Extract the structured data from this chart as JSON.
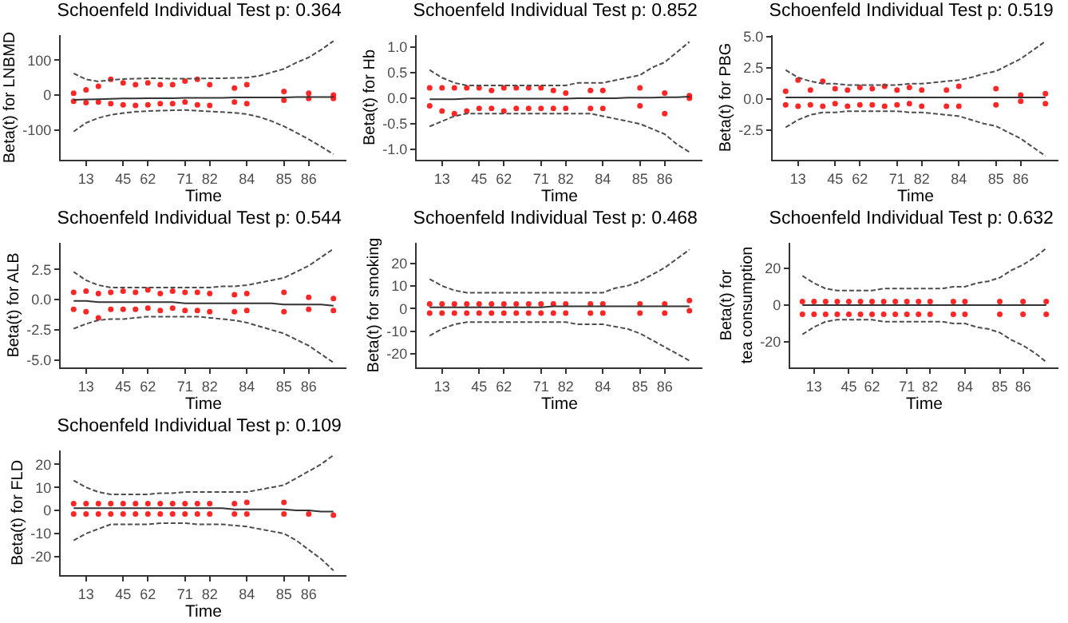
{
  "chart_data": [
    {
      "type": "scatter",
      "title": "Schoenfeld Individual Test p: 0.364",
      "xlabel": "Time",
      "ylabel": "Beta(t) for LNBMD",
      "categories": [
        null,
        "13",
        null,
        null,
        "45",
        null,
        "62",
        null,
        null,
        "71",
        null,
        "82",
        null,
        null,
        "84",
        null,
        null,
        "85",
        null,
        "86",
        null,
        null
      ],
      "ylim": [
        -186,
        172
      ],
      "yticks": [
        -100,
        0,
        100
      ],
      "series": [
        {
          "type": "scatter",
          "marker": "circle",
          "color": "#ff0000",
          "values": [
            5,
            15,
            25,
            45,
            35,
            30,
            35,
            30,
            30,
            40,
            45,
            30,
            null,
            20,
            30,
            null,
            null,
            10,
            null,
            5,
            null,
            0
          ]
        },
        {
          "type": "scatter",
          "marker": "circle",
          "color": "#ff0000",
          "values": [
            -18,
            -22,
            -20,
            -25,
            -28,
            -30,
            -28,
            -25,
            -25,
            -20,
            -28,
            -30,
            null,
            -20,
            -25,
            null,
            null,
            -15,
            null,
            -10,
            null,
            -10
          ]
        },
        {
          "type": "line",
          "marker": "none",
          "color": "#333333",
          "line_style": "solid",
          "values": [
            -14,
            -13,
            -12,
            -11,
            -10,
            -10,
            -9,
            -9,
            -9,
            -8,
            -8,
            -8,
            -8,
            -7,
            -7,
            -7,
            -7,
            -7,
            -6,
            -6,
            -6,
            -6
          ]
        },
        {
          "type": "line",
          "marker": "none",
          "color": "#4d4d4d",
          "line_style": "dashed",
          "values": [
            62,
            45,
            39,
            43,
            46,
            47,
            48,
            48,
            47,
            47,
            47,
            48,
            48,
            49,
            50,
            55,
            65,
            75,
            93,
            108,
            130,
            155
          ]
        },
        {
          "type": "line",
          "marker": "none",
          "color": "#4d4d4d",
          "line_style": "dashed",
          "values": [
            -105,
            -80,
            -66,
            -57,
            -52,
            -48,
            -46,
            -45,
            -44,
            -43,
            -45,
            -47,
            -49,
            -51,
            -55,
            -63,
            -75,
            -90,
            -108,
            -127,
            -148,
            -170
          ]
        }
      ]
    },
    {
      "type": "scatter",
      "title": "Schoenfeld Individual Test p: 0.852",
      "xlabel": "Time",
      "ylabel": "Beta(t) for Hb",
      "categories": [
        null,
        "13",
        null,
        null,
        "45",
        null,
        "62",
        null,
        null,
        "71",
        null,
        "82",
        null,
        null,
        "84",
        null,
        null,
        "85",
        null,
        "86",
        null,
        null
      ],
      "ylim": [
        -1.2,
        1.23
      ],
      "yticks": [
        {
          "value": -1,
          "label": "-1.0"
        },
        {
          "value": -0.5,
          "label": "-0.5"
        },
        {
          "value": 0,
          "label": "0.0"
        },
        {
          "value": 0.5,
          "label": "0.5"
        },
        {
          "value": 1,
          "label": "1.0"
        }
      ],
      "series": [
        {
          "type": "scatter",
          "marker": "circle",
          "color": "#ff0000",
          "values": [
            0.2,
            0.2,
            0.2,
            0.2,
            0.2,
            0.15,
            0.2,
            0.2,
            0.2,
            0.2,
            0.15,
            0.1,
            null,
            0.15,
            0.15,
            null,
            null,
            0.2,
            null,
            0.1,
            null,
            0.05
          ]
        },
        {
          "type": "scatter",
          "marker": "circle",
          "color": "#ff0000",
          "values": [
            -0.15,
            -0.25,
            -0.3,
            -0.25,
            -0.2,
            -0.2,
            -0.25,
            -0.2,
            -0.2,
            -0.2,
            -0.2,
            -0.2,
            null,
            -0.2,
            -0.2,
            null,
            null,
            -0.15,
            null,
            -0.3,
            null,
            0
          ]
        },
        {
          "type": "line",
          "marker": "none",
          "color": "#333333",
          "line_style": "solid",
          "values": [
            -0.02,
            -0.02,
            -0.02,
            -0.01,
            -0.01,
            -0.01,
            -0.01,
            -0.01,
            -0.01,
            -0.01,
            -0.01,
            -0.01,
            0,
            0,
            0,
            0,
            0.01,
            0.01,
            0.01,
            0.02,
            0.02,
            0.03
          ]
        },
        {
          "type": "line",
          "marker": "none",
          "color": "#4d4d4d",
          "line_style": "dashed",
          "values": [
            0.55,
            0.4,
            0.3,
            0.25,
            0.25,
            0.25,
            0.25,
            0.25,
            0.25,
            0.25,
            0.25,
            0.25,
            0.3,
            0.3,
            0.3,
            0.35,
            0.4,
            0.45,
            0.6,
            0.7,
            0.9,
            1.1
          ]
        },
        {
          "type": "line",
          "marker": "none",
          "color": "#4d4d4d",
          "line_style": "dashed",
          "values": [
            -0.55,
            -0.45,
            -0.35,
            -0.3,
            -0.3,
            -0.3,
            -0.3,
            -0.3,
            -0.3,
            -0.3,
            -0.3,
            -0.3,
            -0.3,
            -0.3,
            -0.35,
            -0.4,
            -0.45,
            -0.5,
            -0.6,
            -0.7,
            -0.9,
            -1.05
          ]
        }
      ]
    },
    {
      "type": "scatter",
      "title": "Schoenfeld Individual Test p: 0.519",
      "xlabel": "Time",
      "ylabel": "Beta(t) for PBG",
      "categories": [
        null,
        "13",
        null,
        null,
        "45",
        null,
        "62",
        null,
        null,
        "71",
        null,
        "82",
        null,
        null,
        "84",
        null,
        null,
        "85",
        null,
        "86",
        null,
        null
      ],
      "ylim": [
        -4.9,
        5.1
      ],
      "yticks": [
        {
          "value": -2.5,
          "label": "-2.5"
        },
        {
          "value": 0,
          "label": "0.0"
        },
        {
          "value": 2.5,
          "label": "2.5"
        },
        {
          "value": 5,
          "label": "5.0"
        }
      ],
      "series": [
        {
          "type": "scatter",
          "marker": "circle",
          "color": "#ff0000",
          "values": [
            0.6,
            1.5,
            0.7,
            1.4,
            0.8,
            0.7,
            0.9,
            0.8,
            1.0,
            0.7,
            0.9,
            0.7,
            null,
            0.7,
            1.0,
            null,
            null,
            0.8,
            null,
            0.3,
            null,
            0.4
          ]
        },
        {
          "type": "scatter",
          "marker": "circle",
          "color": "#ff0000",
          "values": [
            -0.5,
            -0.6,
            -0.5,
            -0.6,
            -0.4,
            -0.6,
            -0.5,
            -0.5,
            -0.6,
            -0.5,
            -0.4,
            -0.6,
            null,
            -0.6,
            -0.6,
            null,
            null,
            -0.5,
            null,
            -0.2,
            null,
            -0.4
          ]
        },
        {
          "type": "line",
          "marker": "none",
          "color": "#333333",
          "line_style": "solid",
          "values": [
            0.1,
            0.1,
            0.1,
            0.1,
            0.1,
            0.1,
            0.1,
            0.1,
            0.1,
            0.1,
            0.1,
            0.1,
            0.1,
            0.1,
            0.1,
            0.1,
            0.1,
            0.1,
            0.1,
            0.1,
            0.1,
            0.1
          ]
        },
        {
          "type": "line",
          "marker": "none",
          "color": "#4d4d4d",
          "line_style": "dashed",
          "values": [
            2.3,
            1.7,
            1.4,
            1.2,
            1.2,
            1.1,
            1.1,
            1.1,
            1.1,
            1.1,
            1.2,
            1.2,
            1.3,
            1.4,
            1.5,
            1.7,
            2.0,
            2.2,
            2.7,
            3.2,
            3.9,
            4.6
          ]
        },
        {
          "type": "line",
          "marker": "none",
          "color": "#4d4d4d",
          "line_style": "dashed",
          "values": [
            -2.3,
            -1.7,
            -1.3,
            -1.1,
            -1.1,
            -1.0,
            -1.0,
            -1.0,
            -1.0,
            -1.0,
            -1.1,
            -1.1,
            -1.2,
            -1.3,
            -1.4,
            -1.7,
            -2.0,
            -2.2,
            -2.7,
            -3.2,
            -3.9,
            -4.6
          ]
        }
      ]
    },
    {
      "type": "scatter",
      "title": "Schoenfeld Individual Test p: 0.544",
      "xlabel": "Time",
      "ylabel": "Beta(t) for ALB",
      "categories": [
        null,
        "13",
        null,
        null,
        "45",
        null,
        "62",
        null,
        null,
        "71",
        null,
        "82",
        null,
        null,
        "84",
        null,
        null,
        "85",
        null,
        "86",
        null,
        null
      ],
      "ylim": [
        -5.6,
        4.7
      ],
      "yticks": [
        {
          "value": -5,
          "label": "-5.0"
        },
        {
          "value": -2.5,
          "label": "-2.5"
        },
        {
          "value": 0,
          "label": "0.0"
        },
        {
          "value": 2.5,
          "label": "2.5"
        }
      ],
      "series": [
        {
          "type": "scatter",
          "marker": "circle",
          "color": "#ff0000",
          "values": [
            0.6,
            0.7,
            0.5,
            0.6,
            0.7,
            0.6,
            0.8,
            0.5,
            0.7,
            0.6,
            0.6,
            0.5,
            null,
            0.4,
            0.5,
            null,
            null,
            0.6,
            null,
            0.2,
            null,
            0.1
          ]
        },
        {
          "type": "scatter",
          "marker": "circle",
          "color": "#ff0000",
          "values": [
            -0.8,
            -1.0,
            -1.5,
            -0.8,
            -0.8,
            -0.8,
            -0.7,
            -0.9,
            -0.7,
            -0.9,
            -0.9,
            -1.0,
            null,
            -1.0,
            -0.9,
            null,
            null,
            -1.0,
            null,
            -0.8,
            null,
            -0.9
          ]
        },
        {
          "type": "line",
          "marker": "none",
          "color": "#333333",
          "line_style": "solid",
          "values": [
            -0.1,
            -0.1,
            -0.2,
            -0.2,
            -0.2,
            -0.2,
            -0.2,
            -0.2,
            -0.2,
            -0.3,
            -0.3,
            -0.3,
            -0.3,
            -0.3,
            -0.3,
            -0.3,
            -0.3,
            -0.4,
            -0.4,
            -0.4,
            -0.4,
            -0.5
          ]
        },
        {
          "type": "line",
          "marker": "none",
          "color": "#4d4d4d",
          "line_style": "dashed",
          "values": [
            2.3,
            1.6,
            1.2,
            1.0,
            1.0,
            1.0,
            1.0,
            1.0,
            1.0,
            1.0,
            1.0,
            1.0,
            1.1,
            1.1,
            1.2,
            1.4,
            1.6,
            1.8,
            2.3,
            2.8,
            3.5,
            4.2
          ]
        },
        {
          "type": "line",
          "marker": "none",
          "color": "#4d4d4d",
          "line_style": "dashed",
          "values": [
            -2.4,
            -2.0,
            -1.7,
            -1.6,
            -1.6,
            -1.5,
            -1.4,
            -1.4,
            -1.4,
            -1.4,
            -1.4,
            -1.5,
            -1.6,
            -1.7,
            -1.9,
            -2.2,
            -2.5,
            -2.8,
            -3.3,
            -3.8,
            -4.5,
            -5.2
          ]
        }
      ]
    },
    {
      "type": "scatter",
      "title": "Schoenfeld Individual Test p: 0.468",
      "xlabel": "Time",
      "ylabel": "Beta(t) for smoking",
      "categories": [
        null,
        "13",
        null,
        null,
        "45",
        null,
        "62",
        null,
        null,
        "71",
        null,
        "82",
        null,
        null,
        "84",
        null,
        null,
        "85",
        null,
        "86",
        null,
        null
      ],
      "ylim": [
        -26,
        29
      ],
      "yticks": [
        -20,
        -10,
        0,
        10,
        20
      ],
      "series": [
        {
          "type": "scatter",
          "marker": "circle",
          "color": "#ff0000",
          "values": [
            2,
            2,
            2,
            2,
            2,
            2,
            2,
            2,
            2,
            2,
            2,
            2,
            null,
            2,
            2,
            null,
            null,
            2,
            null,
            2,
            null,
            3.5
          ]
        },
        {
          "type": "scatter",
          "marker": "circle",
          "color": "#ff0000",
          "values": [
            -2,
            -2,
            -2,
            -2,
            -2,
            -2,
            -2,
            -2,
            -2,
            -2,
            -2,
            -2,
            null,
            -2,
            -2,
            null,
            null,
            -2,
            null,
            -2,
            null,
            -1
          ]
        },
        {
          "type": "line",
          "marker": "none",
          "color": "#333333",
          "line_style": "solid",
          "values": [
            0.5,
            0.5,
            0.5,
            0.5,
            0.5,
            0.5,
            0.5,
            0.5,
            0.5,
            0.5,
            1,
            1,
            1,
            1,
            1,
            1,
            1,
            1,
            1,
            1,
            1,
            1
          ]
        },
        {
          "type": "line",
          "marker": "none",
          "color": "#4d4d4d",
          "line_style": "dashed",
          "values": [
            13,
            10,
            8,
            7,
            7,
            7,
            7,
            7,
            7,
            7,
            7,
            7,
            7,
            7,
            7,
            9,
            10,
            12,
            15,
            18,
            22,
            26
          ]
        },
        {
          "type": "line",
          "marker": "none",
          "color": "#4d4d4d",
          "line_style": "dashed",
          "values": [
            -12,
            -9,
            -7,
            -6,
            -6,
            -6,
            -6,
            -6,
            -6,
            -6,
            -6,
            -6,
            -7,
            -7,
            -7,
            -8,
            -9,
            -11,
            -14,
            -17,
            -20,
            -23
          ]
        }
      ]
    },
    {
      "type": "scatter",
      "title": "Schoenfeld Individual Test p: 0.632",
      "xlabel": "Time",
      "ylabel": "Beta(t) for tea consumption",
      "categories": [
        null,
        "13",
        null,
        null,
        "45",
        null,
        "62",
        null,
        null,
        "71",
        null,
        "82",
        null,
        null,
        "84",
        null,
        null,
        "85",
        null,
        "86",
        null,
        null
      ],
      "ylim": [
        -34,
        34
      ],
      "yticks": [
        -20,
        0,
        20
      ],
      "series": [
        {
          "type": "scatter",
          "marker": "circle",
          "color": "#ff0000",
          "values": [
            2,
            2,
            2,
            2,
            2,
            2,
            2,
            2,
            2,
            2,
            2,
            2,
            null,
            2,
            2,
            null,
            null,
            2,
            null,
            2,
            null,
            2
          ]
        },
        {
          "type": "scatter",
          "marker": "circle",
          "color": "#ff0000",
          "values": [
            -5,
            -5,
            -5,
            -5,
            -5,
            -5,
            -5,
            -5,
            -5,
            -5,
            -5,
            -5,
            null,
            -5,
            -5,
            null,
            null,
            -5,
            null,
            -5,
            null,
            -5
          ]
        },
        {
          "type": "line",
          "marker": "none",
          "color": "#333333",
          "line_style": "solid",
          "values": [
            0,
            0,
            0,
            0,
            0,
            0,
            0,
            0,
            0,
            0,
            0,
            0,
            0,
            0,
            0,
            0,
            0,
            0,
            0,
            0,
            0,
            0
          ]
        },
        {
          "type": "line",
          "marker": "none",
          "color": "#4d4d4d",
          "line_style": "dashed",
          "values": [
            16,
            12,
            9,
            8,
            8,
            8,
            8,
            9,
            9,
            9,
            9,
            9,
            9,
            10,
            10,
            12,
            13,
            15,
            19,
            22,
            26,
            31
          ]
        },
        {
          "type": "line",
          "marker": "none",
          "color": "#4d4d4d",
          "line_style": "dashed",
          "values": [
            -16,
            -12,
            -9,
            -8,
            -8,
            -8,
            -8,
            -9,
            -9,
            -9,
            -9,
            -9,
            -9,
            -10,
            -10,
            -12,
            -13,
            -15,
            -19,
            -22,
            -26,
            -31
          ]
        }
      ]
    },
    {
      "type": "scatter",
      "title": "Schoenfeld Individual Test p: 0.109",
      "xlabel": "Time",
      "ylabel": "Beta(t) for FLD",
      "categories": [
        null,
        "13",
        null,
        null,
        "45",
        null,
        "62",
        null,
        null,
        "71",
        null,
        "82",
        null,
        null,
        "84",
        null,
        null,
        "85",
        null,
        "86",
        null,
        null
      ],
      "ylim": [
        -28,
        26
      ],
      "yticks": [
        -20,
        -10,
        0,
        10,
        20
      ],
      "series": [
        {
          "type": "scatter",
          "marker": "circle",
          "color": "#ff0000",
          "values": [
            3,
            3,
            3,
            3,
            3,
            3,
            3,
            3,
            3,
            3,
            3,
            3,
            null,
            3,
            3.5,
            null,
            null,
            3.5,
            null,
            null,
            null,
            null
          ]
        },
        {
          "type": "scatter",
          "marker": "circle",
          "color": "#ff0000",
          "values": [
            -1.5,
            -1.5,
            -1.5,
            -1.5,
            -1.5,
            -1.5,
            -1.5,
            -1.5,
            -1.5,
            -1.5,
            -1.5,
            -1.5,
            null,
            -1.5,
            -1.5,
            null,
            null,
            -1.5,
            null,
            -1.5,
            null,
            -2
          ]
        },
        {
          "type": "line",
          "marker": "none",
          "color": "#333333",
          "line_style": "solid",
          "values": [
            1,
            1,
            1,
            1,
            1,
            1,
            1,
            1,
            1,
            1,
            1,
            1,
            1,
            0.5,
            0.5,
            0.5,
            0.5,
            0.5,
            0,
            0,
            -0.5,
            -0.5
          ]
        },
        {
          "type": "line",
          "marker": "none",
          "color": "#4d4d4d",
          "line_style": "dashed",
          "values": [
            13,
            10,
            8,
            7,
            7,
            7,
            7,
            7.5,
            7.5,
            8,
            8,
            8,
            8,
            8,
            8,
            9,
            10,
            11,
            14,
            17,
            20,
            24
          ]
        },
        {
          "type": "line",
          "marker": "none",
          "color": "#4d4d4d",
          "line_style": "dashed",
          "values": [
            -13,
            -10,
            -8,
            -6,
            -6,
            -6,
            -6,
            -5.5,
            -5.5,
            -5.5,
            -6,
            -6,
            -6,
            -6.5,
            -7,
            -8,
            -9,
            -10,
            -13,
            -17,
            -21,
            -26
          ]
        }
      ]
    }
  ]
}
